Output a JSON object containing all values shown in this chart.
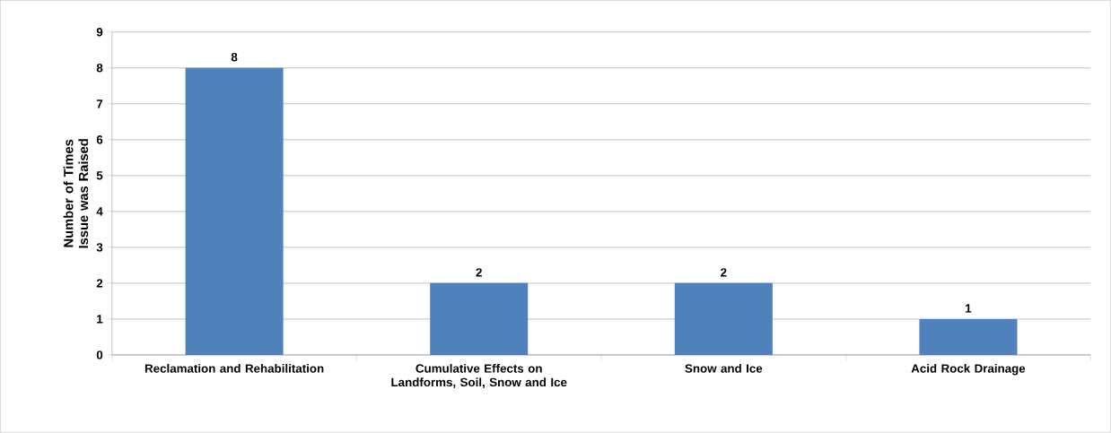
{
  "chart_data": {
    "type": "bar",
    "ylabel": "Number of Times Issue was Raised",
    "categories": [
      "Reclamation and Rehabilitation",
      "Cumulative Effects on Landforms, Soil, Snow and Ice",
      "Snow and Ice",
      "Acid Rock Drainage"
    ],
    "values": [
      8,
      2,
      2,
      1
    ],
    "color": "#4f81bd",
    "ylim": [
      0,
      9
    ],
    "yticks": [
      0,
      1,
      2,
      3,
      4,
      5,
      6,
      7,
      8,
      9
    ],
    "grid": "y",
    "data_labels": true
  }
}
